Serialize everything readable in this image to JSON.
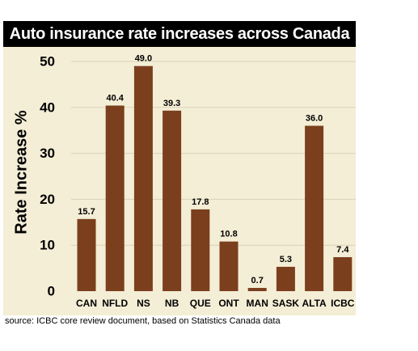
{
  "colors": {
    "background": "#f4eed6",
    "title_bar": "#000000",
    "title_text": "#ffffff",
    "bar": "#7b3f1d",
    "gridline": "#d9d2b8"
  },
  "source": "source: ICBC core review document, based on Statistics Canada data",
  "chart_data": {
    "type": "bar",
    "title": "Auto insurance rate increases across Canada",
    "xlabel": "",
    "ylabel": "Rate Increase %",
    "ylim": [
      0,
      50
    ],
    "yticks": [
      0,
      10,
      20,
      30,
      40,
      50
    ],
    "grid": true,
    "legend": "none",
    "categories": [
      "CAN",
      "NFLD",
      "NS",
      "NB",
      "QUE",
      "ONT",
      "MAN",
      "SASK",
      "ALTA",
      "ICBC"
    ],
    "values": [
      15.7,
      40.4,
      49.0,
      39.3,
      17.8,
      10.8,
      0.7,
      5.3,
      36.0,
      7.4
    ],
    "value_labels": [
      "15.7",
      "40.4",
      "49.0",
      "39.3",
      "17.8",
      "10.8",
      "0.7",
      "5.3",
      "36.0",
      "7.4"
    ]
  }
}
